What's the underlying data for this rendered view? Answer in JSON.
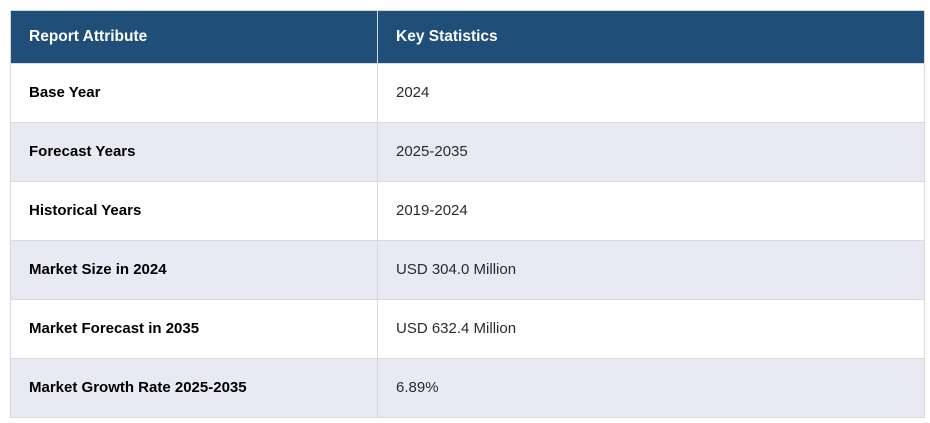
{
  "table": {
    "columns": [
      "Report Attribute",
      "Key Statistics"
    ],
    "rows": [
      {
        "attribute": "Base Year",
        "value": "2024"
      },
      {
        "attribute": "Forecast Years",
        "value": "2025-2035"
      },
      {
        "attribute": "Historical Years",
        "value": "2019-2024"
      },
      {
        "attribute": "Market Size in 2024",
        "value": "USD 304.0 Million"
      },
      {
        "attribute": "Market Forecast in 2035",
        "value": "USD 632.4 Million"
      },
      {
        "attribute": "Market Growth Rate 2025-2035",
        "value": "6.89%"
      }
    ],
    "colors": {
      "header_bg": "#1f4e79",
      "header_text": "#ffffff",
      "row_bg": "#ffffff",
      "row_alt_bg": "#e8e9f3",
      "border": "#d9d9d9",
      "label_text": "#000000",
      "value_text": "#2b2b2b"
    }
  },
  "chart_data": {
    "type": "table",
    "columns": [
      "Report Attribute",
      "Key Statistics"
    ],
    "rows": [
      [
        "Base Year",
        "2024"
      ],
      [
        "Forecast Years",
        "2025-2035"
      ],
      [
        "Historical Years",
        "2019-2024"
      ],
      [
        "Market Size in 2024",
        "USD 304.0 Million"
      ],
      [
        "Market Forecast in 2035",
        "USD 632.4 Million"
      ],
      [
        "Market Growth Rate 2025-2035",
        "6.89%"
      ]
    ],
    "layout": {
      "header_position": "top",
      "alternating_row_shading": true,
      "grid": "horizontal-and-column-divider"
    }
  }
}
